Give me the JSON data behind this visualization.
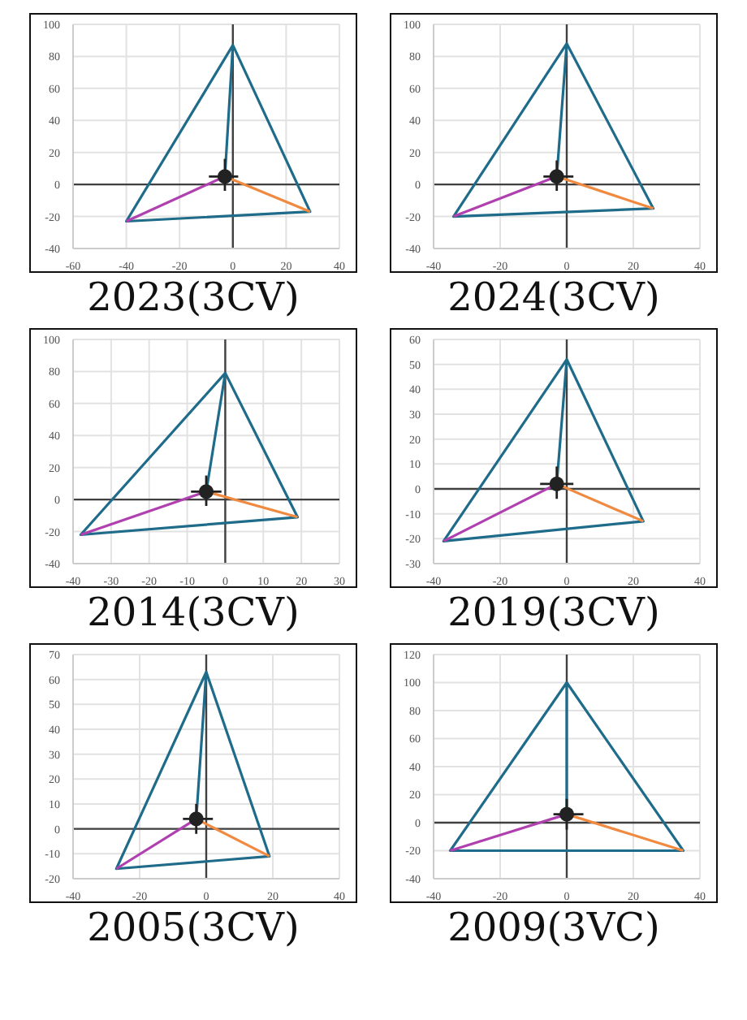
{
  "chart_data": [
    {
      "type": "line",
      "title": "2023(3CV)",
      "xlim": [
        -60,
        40
      ],
      "xticks": [
        -60,
        -40,
        -20,
        0,
        20,
        40
      ],
      "ylim": [
        -40,
        100
      ],
      "yticks": [
        -40,
        -20,
        0,
        20,
        40,
        60,
        80,
        100
      ],
      "grid": true,
      "marker": "none",
      "line_style": "solid",
      "series": [
        {
          "color": "#1f6b8a",
          "x": [
            -3,
            0,
            -40,
            29,
            0
          ],
          "values": [
            5,
            87,
            -23,
            -17,
            87
          ]
        },
        {
          "color": "#b040b0",
          "x": [
            -40,
            -3
          ],
          "values": [
            -23,
            5
          ]
        },
        {
          "color": "#f08a40",
          "x": [
            -3,
            29
          ],
          "values": [
            5,
            -17
          ]
        },
        {
          "type": "scatter",
          "marker": "circle",
          "color": "#222222",
          "x": [
            -3
          ],
          "values": [
            5
          ],
          "errors": [
            [
              -4,
              16
            ]
          ],
          "xerrors": [
            [
              -9,
              2
            ]
          ]
        }
      ]
    },
    {
      "type": "line",
      "title": "2024(3CV)",
      "xlim": [
        -40,
        40
      ],
      "xticks": [
        -40,
        -20,
        0,
        20,
        40
      ],
      "ylim": [
        -40,
        100
      ],
      "yticks": [
        -40,
        -20,
        0,
        20,
        40,
        60,
        80,
        100
      ],
      "grid": true,
      "marker": "none",
      "line_style": "solid",
      "series": [
        {
          "color": "#1f6b8a",
          "x": [
            -3,
            0,
            -34,
            26,
            0
          ],
          "values": [
            5,
            88,
            -20,
            -15,
            88
          ]
        },
        {
          "color": "#b040b0",
          "x": [
            -34,
            -3
          ],
          "values": [
            -20,
            5
          ]
        },
        {
          "color": "#f08a40",
          "x": [
            -3,
            26
          ],
          "values": [
            5,
            -15
          ]
        },
        {
          "type": "scatter",
          "marker": "circle",
          "color": "#222222",
          "x": [
            -3
          ],
          "values": [
            5
          ],
          "errors": [
            [
              -4,
              15
            ]
          ],
          "xerrors": [
            [
              -7,
              2
            ]
          ]
        }
      ]
    },
    {
      "type": "line",
      "title": "2014(3CV)",
      "xlim": [
        -40,
        30
      ],
      "xticks": [
        -40,
        -30,
        -20,
        -10,
        0,
        10,
        20,
        30
      ],
      "ylim": [
        -40,
        100
      ],
      "yticks": [
        -40,
        -20,
        0,
        20,
        40,
        60,
        80,
        100
      ],
      "grid": true,
      "marker": "none",
      "line_style": "solid",
      "series": [
        {
          "color": "#1f6b8a",
          "x": [
            -5,
            0,
            -38,
            19,
            0
          ],
          "values": [
            5,
            79,
            -22,
            -11,
            79
          ]
        },
        {
          "color": "#b040b0",
          "x": [
            -38,
            -5
          ],
          "values": [
            -22,
            5
          ]
        },
        {
          "color": "#f08a40",
          "x": [
            -5,
            19
          ],
          "values": [
            5,
            -11
          ]
        },
        {
          "type": "scatter",
          "marker": "circle",
          "color": "#222222",
          "x": [
            -5
          ],
          "values": [
            5
          ],
          "errors": [
            [
              -4,
              15
            ]
          ],
          "xerrors": [
            [
              -9,
              -1
            ]
          ]
        }
      ]
    },
    {
      "type": "line",
      "title": "2019(3CV)",
      "xlim": [
        -40,
        40
      ],
      "xticks": [
        -40,
        -20,
        0,
        20,
        40
      ],
      "ylim": [
        -30,
        60
      ],
      "yticks": [
        -30,
        -20,
        -10,
        0,
        10,
        20,
        30,
        40,
        50,
        60
      ],
      "grid": true,
      "marker": "none",
      "line_style": "solid",
      "series": [
        {
          "color": "#1f6b8a",
          "x": [
            -3,
            0,
            -37,
            23,
            0
          ],
          "values": [
            2,
            52,
            -21,
            -13,
            52
          ]
        },
        {
          "color": "#b040b0",
          "x": [
            -37,
            -3
          ],
          "values": [
            -21,
            2
          ]
        },
        {
          "color": "#f08a40",
          "x": [
            -3,
            23
          ],
          "values": [
            2,
            -13
          ]
        },
        {
          "type": "scatter",
          "marker": "circle",
          "color": "#222222",
          "x": [
            -3
          ],
          "values": [
            2
          ],
          "errors": [
            [
              -4,
              9
            ]
          ],
          "xerrors": [
            [
              -8,
              2
            ]
          ]
        }
      ]
    },
    {
      "type": "line",
      "title": "2005(3CV)",
      "xlim": [
        -40,
        40
      ],
      "xticks": [
        -40,
        -20,
        0,
        20,
        40
      ],
      "ylim": [
        -20,
        70
      ],
      "yticks": [
        -20,
        -10,
        0,
        10,
        20,
        30,
        40,
        50,
        60,
        70
      ],
      "grid": true,
      "marker": "none",
      "line_style": "solid",
      "series": [
        {
          "color": "#1f6b8a",
          "x": [
            -3,
            0,
            -27,
            19,
            0
          ],
          "values": [
            4,
            63,
            -16,
            -11,
            63
          ]
        },
        {
          "color": "#b040b0",
          "x": [
            -27,
            -3
          ],
          "values": [
            -16,
            4
          ]
        },
        {
          "color": "#f08a40",
          "x": [
            -3,
            19
          ],
          "values": [
            4,
            -11
          ]
        },
        {
          "type": "scatter",
          "marker": "circle",
          "color": "#222222",
          "x": [
            -3
          ],
          "values": [
            4
          ],
          "errors": [
            [
              -2,
              10
            ]
          ],
          "xerrors": [
            [
              -7,
              2
            ]
          ]
        }
      ]
    },
    {
      "type": "line",
      "title": "2009(3VC)",
      "xlim": [
        -40,
        40
      ],
      "xticks": [
        -40,
        -20,
        0,
        20,
        40
      ],
      "ylim": [
        -40,
        120
      ],
      "yticks": [
        -40,
        -20,
        0,
        20,
        40,
        60,
        80,
        100,
        120
      ],
      "grid": true,
      "marker": "none",
      "line_style": "solid",
      "series": [
        {
          "color": "#1f6b8a",
          "x": [
            0,
            0,
            -35,
            35,
            0
          ],
          "values": [
            6,
            100,
            -20,
            -20,
            100
          ]
        },
        {
          "color": "#b040b0",
          "x": [
            -35,
            0
          ],
          "values": [
            -20,
            6
          ]
        },
        {
          "color": "#f08a40",
          "x": [
            0,
            35
          ],
          "values": [
            6,
            -20
          ]
        },
        {
          "type": "scatter",
          "marker": "circle",
          "color": "#222222",
          "x": [
            0
          ],
          "values": [
            6
          ],
          "errors": [
            [
              -5,
              17
            ]
          ],
          "xerrors": [
            [
              -4,
              5
            ]
          ]
        }
      ]
    }
  ]
}
